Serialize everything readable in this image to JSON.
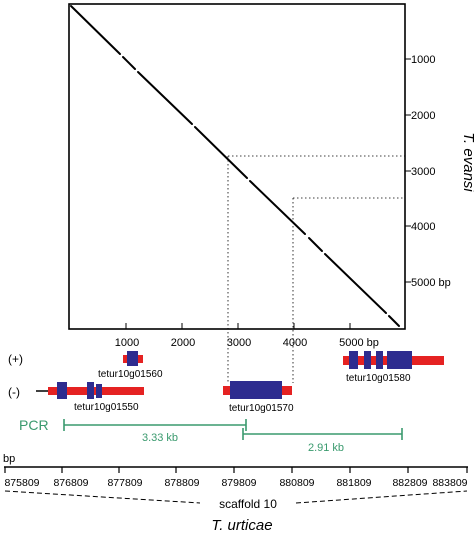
{
  "dotplot": {
    "x_ticks": [
      "1000",
      "2000",
      "3000",
      "4000",
      "5000 bp"
    ],
    "y_ticks": [
      "1000",
      "2000",
      "3000",
      "4000",
      "5000 bp"
    ],
    "y_species": "T. evansi"
  },
  "strands": {
    "plus": "(+)",
    "minus": "(-)"
  },
  "genes": {
    "g1560": "tetur10g01560",
    "g1550": "tetur10g01550",
    "g1570": "tetur10g01570",
    "g1580": "tetur10g01580"
  },
  "pcr": {
    "label": "PCR",
    "product1": "3.33 kb",
    "product2": "2.91 kb"
  },
  "scaffold": {
    "unit": "bp",
    "ticks": [
      "875809",
      "876809",
      "877809",
      "878809",
      "879809",
      "880809",
      "881809",
      "882809",
      "883809"
    ],
    "name": "scaffold 10",
    "species": "T. urticae"
  },
  "colors": {
    "exon": "#2e2c8f",
    "utr": "#e52222",
    "pcr": "#3a9a6e",
    "axis": "#000000"
  }
}
